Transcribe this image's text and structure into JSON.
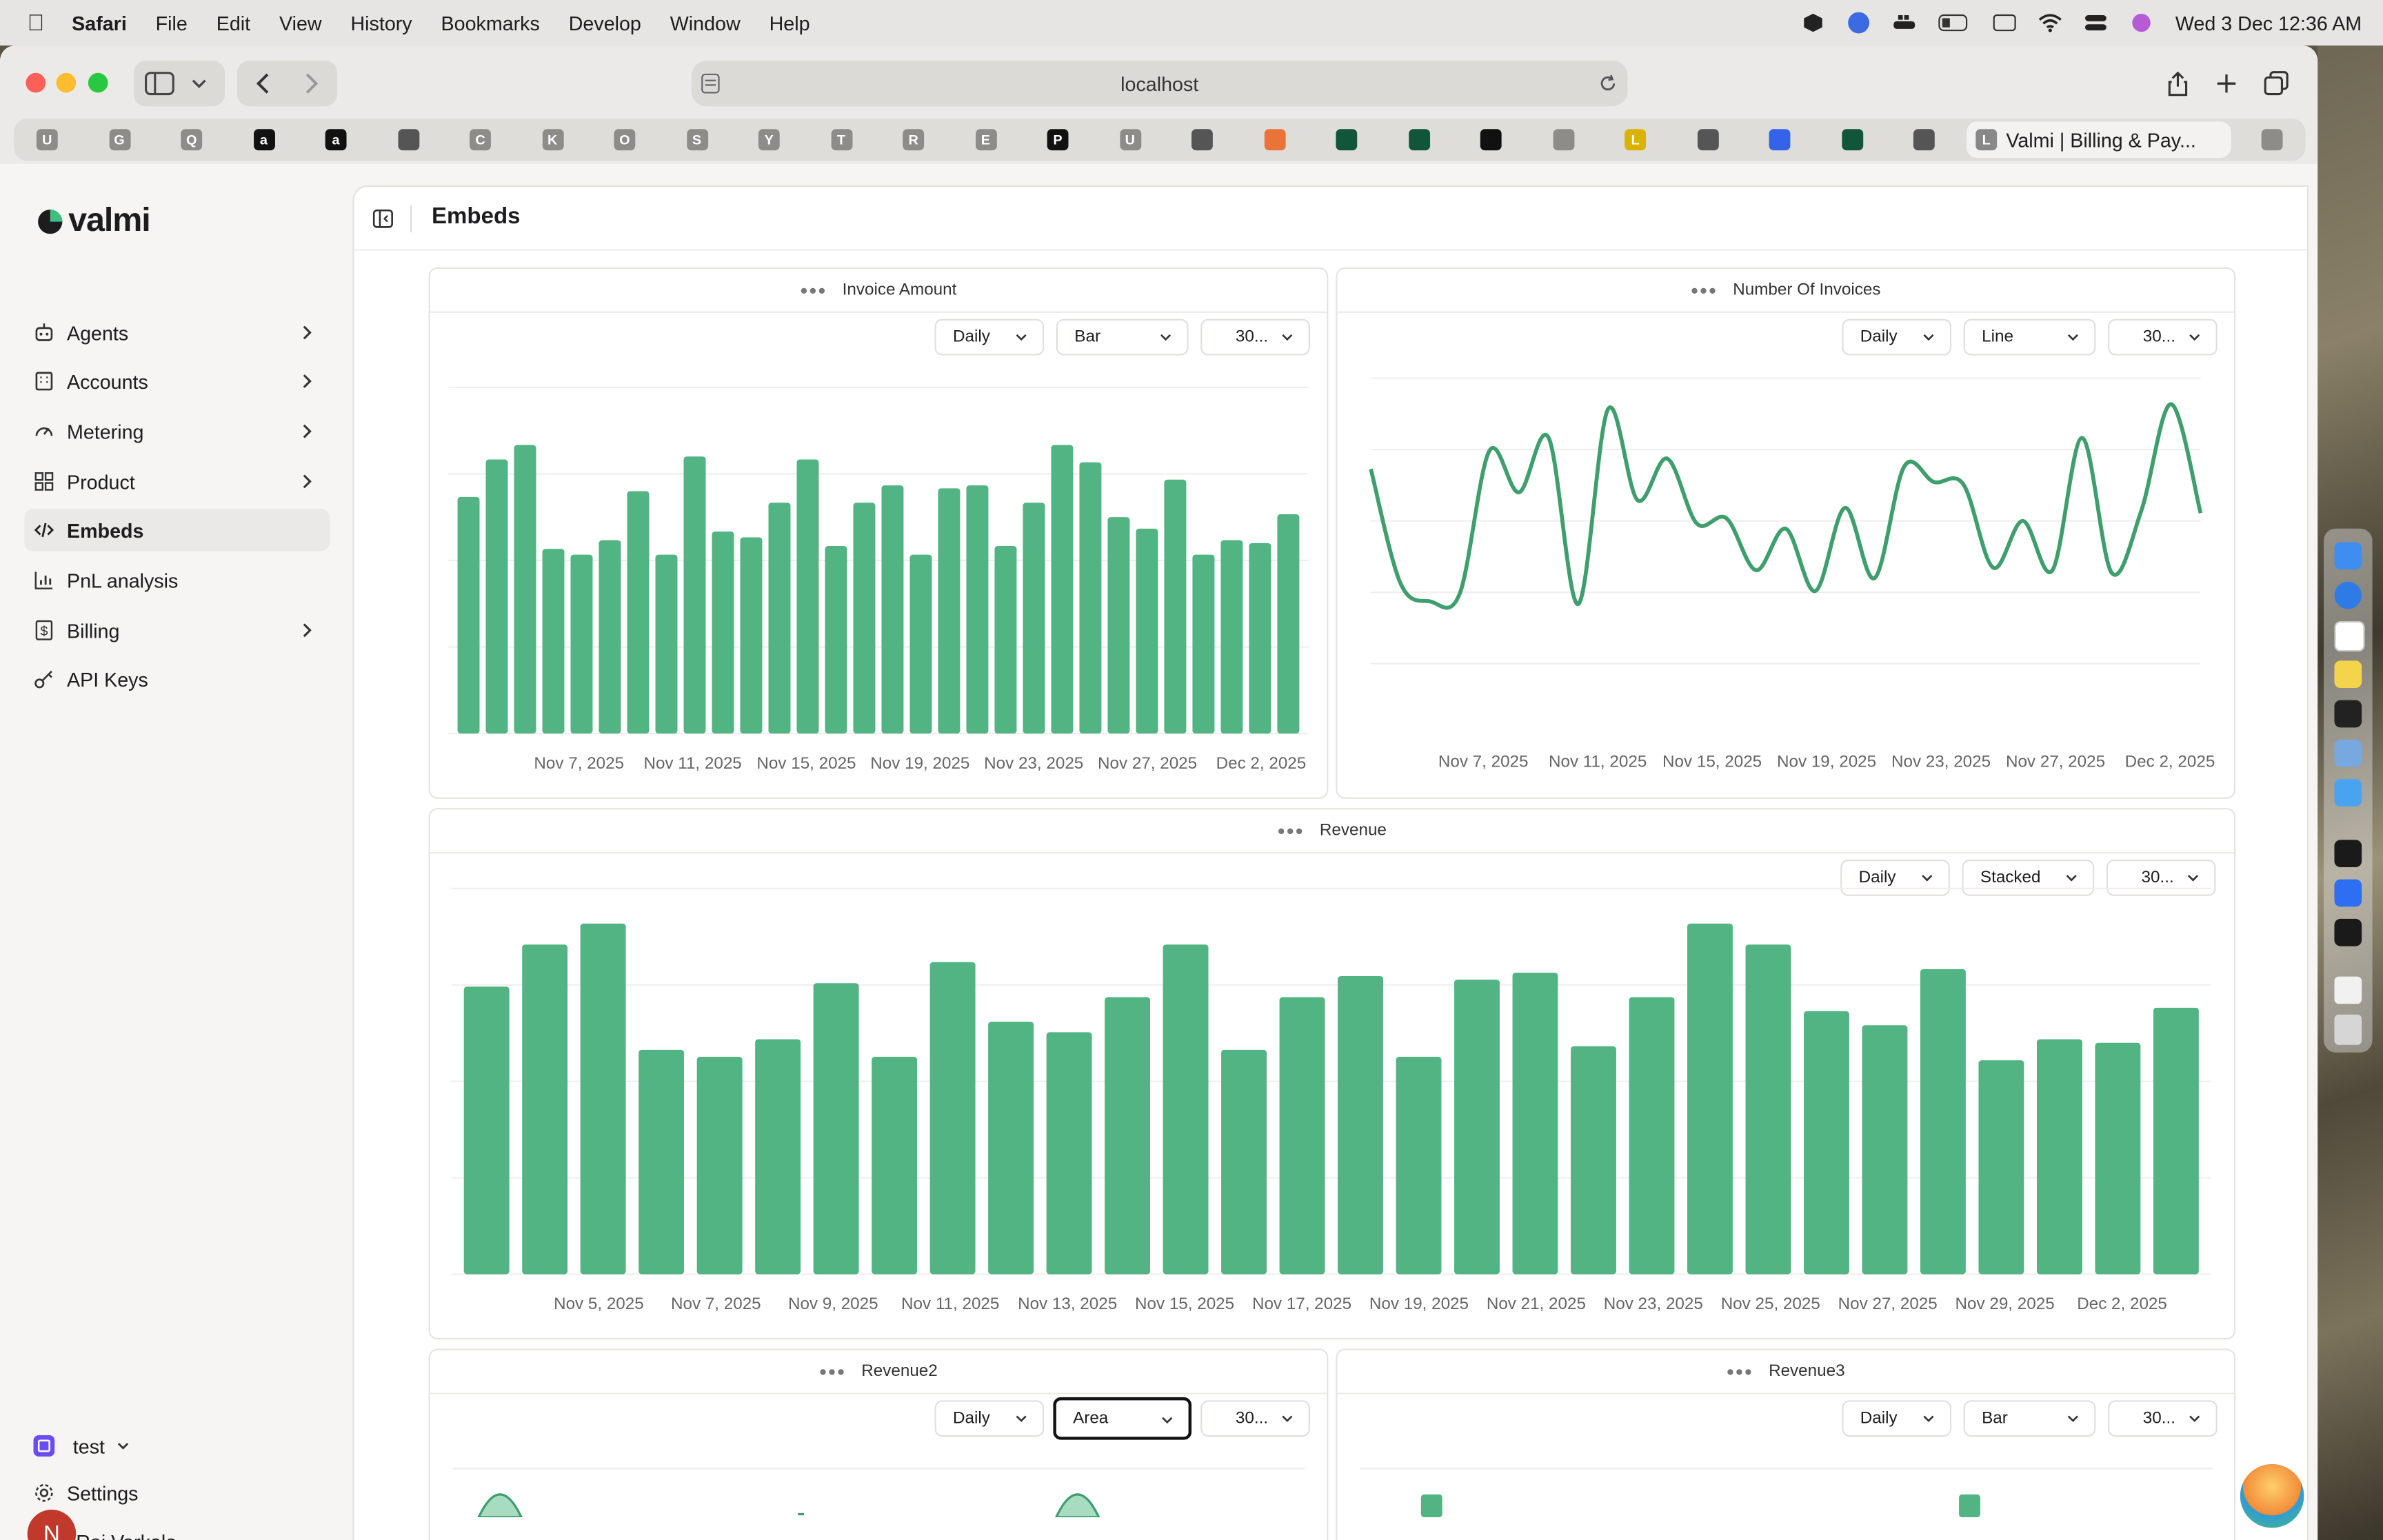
{
  "menubar": {
    "app": "Safari",
    "items": [
      "File",
      "Edit",
      "View",
      "History",
      "Bookmarks",
      "Develop",
      "Window",
      "Help"
    ],
    "clock": "Wed 3 Dec  12:36 AM"
  },
  "browser": {
    "url": "localhost",
    "favorites": [
      "U",
      "G",
      "Q",
      "a",
      "a",
      "",
      "C",
      "K",
      "O",
      "S",
      "Y",
      "T",
      "R",
      "E",
      "P",
      "U",
      "",
      "",
      "",
      "",
      "",
      "",
      "L",
      "",
      "",
      "",
      "",
      ""
    ],
    "active_tab": "Valmi | Billing & Pay..."
  },
  "sidebar": {
    "logo": "valmi",
    "items": [
      {
        "label": "Agents",
        "icon": "agents-icon",
        "chevron": true
      },
      {
        "label": "Accounts",
        "icon": "building-icon",
        "chevron": true
      },
      {
        "label": "Metering",
        "icon": "gauge-icon",
        "chevron": true
      },
      {
        "label": "Product",
        "icon": "grid-icon",
        "chevron": true
      },
      {
        "label": "Embeds",
        "icon": "code-icon",
        "chevron": false,
        "active": true
      },
      {
        "label": "PnL analysis",
        "icon": "bar-chart-icon",
        "chevron": false
      },
      {
        "label": "Billing",
        "icon": "dollar-icon",
        "chevron": true
      },
      {
        "label": "API Keys",
        "icon": "key-icon",
        "chevron": false
      }
    ],
    "workspace": "test",
    "settings": "Settings",
    "user_initial": "N",
    "user_name": "Raj Varkala"
  },
  "page": {
    "title": "Embeds"
  },
  "colors": {
    "accent": "#52b482",
    "line": "#3e9f6d"
  },
  "cards": {
    "invoice_amount": {
      "title": "Invoice Amount",
      "granularity": "Daily",
      "type": "Bar",
      "range": "30..."
    },
    "number_of_invoices": {
      "title": "Number Of Invoices",
      "granularity": "Daily",
      "type": "Line",
      "range": "30..."
    },
    "revenue": {
      "title": "Revenue",
      "granularity": "Daily",
      "type": "Stacked",
      "range": "30..."
    },
    "revenue2": {
      "title": "Revenue2",
      "granularity": "Daily",
      "type": "Area",
      "range": "30..."
    },
    "revenue3": {
      "title": "Revenue3",
      "granularity": "Daily",
      "type": "Bar",
      "range": "30..."
    }
  },
  "chart_data": [
    {
      "type": "bar",
      "title": "Invoice Amount",
      "x_ticks": [
        "Nov 7, 2025",
        "Nov 11, 2025",
        "Nov 15, 2025",
        "Nov 19, 2025",
        "Nov 23, 2025",
        "Nov 27, 2025",
        "Dec 2, 2025"
      ],
      "values": [
        82,
        95,
        100,
        64,
        62,
        67,
        84,
        62,
        96,
        70,
        68,
        80,
        95,
        65,
        80,
        86,
        62,
        85,
        86,
        65,
        80,
        100,
        94,
        75,
        71,
        88,
        62,
        67,
        66,
        76
      ],
      "ylim": [
        0,
        120
      ]
    },
    {
      "type": "line",
      "title": "Number Of Invoices",
      "x_ticks": [
        "Nov 7, 2025",
        "Nov 11, 2025",
        "Nov 15, 2025",
        "Nov 19, 2025",
        "Nov 23, 2025",
        "Nov 27, 2025",
        "Dec 2, 2025"
      ],
      "values": [
        75,
        31,
        24,
        27,
        82,
        66,
        87,
        23,
        98,
        63,
        79,
        54,
        56,
        36,
        52,
        28,
        60,
        33,
        76,
        70,
        69,
        37,
        55,
        36,
        87,
        35,
        59,
        100,
        58
      ],
      "ylim": [
        0,
        110
      ]
    },
    {
      "type": "bar",
      "title": "Revenue",
      "x_ticks": [
        "Nov 5, 2025",
        "Nov 7, 2025",
        "Nov 9, 2025",
        "Nov 11, 2025",
        "Nov 13, 2025",
        "Nov 15, 2025",
        "Nov 17, 2025",
        "Nov 19, 2025",
        "Nov 21, 2025",
        "Nov 23, 2025",
        "Nov 25, 2025",
        "Nov 27, 2025",
        "Nov 29, 2025",
        "Dec 2, 2025"
      ],
      "values": [
        82,
        94,
        100,
        64,
        62,
        67,
        83,
        62,
        89,
        72,
        69,
        79,
        94,
        64,
        79,
        85,
        62,
        84,
        86,
        65,
        79,
        100,
        94,
        75,
        71,
        87,
        61,
        67,
        66,
        76
      ],
      "ylim": [
        0,
        110
      ]
    },
    {
      "type": "area",
      "title": "Revenue2",
      "x_ticks": [],
      "values": [],
      "ylim": [
        0,
        100
      ]
    },
    {
      "type": "bar",
      "title": "Revenue3",
      "x_ticks": [],
      "values": [],
      "ylim": [
        0,
        100
      ]
    }
  ]
}
